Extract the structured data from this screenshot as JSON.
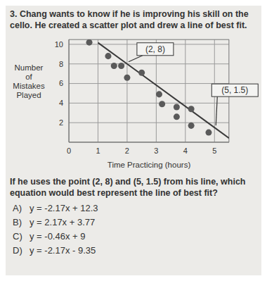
{
  "question": {
    "number": "3.",
    "text": "Chang wants to know if he is improving his skill on the cello.  He created a scatter plot and drew a line of best fit."
  },
  "chart_data": {
    "type": "scatter",
    "y_label": "Number of Mistakes Played",
    "x_label": "Time Practicing (hours)",
    "x": [
      0.7,
      1.35,
      1.55,
      1.8,
      2.0,
      2.5,
      3.1,
      3.2,
      3.7,
      3.7,
      4.2,
      4.2,
      4.8
    ],
    "y": [
      10.2,
      8.8,
      7.8,
      7.8,
      6.6,
      7.1,
      4.9,
      3.9,
      3.6,
      2.6,
      3.4,
      1.7,
      1.0
    ],
    "color": "#5a5a5a",
    "best_fit": {
      "x": [
        1,
        2,
        5,
        5.5
      ],
      "y": [
        10.17,
        8,
        1.5,
        0.42
      ],
      "color": "#3a3a3a"
    },
    "annotations": [
      {
        "text": "(2, 8)",
        "x": 2,
        "y": 8
      },
      {
        "text": "(5, 1.5)",
        "x": 5,
        "y": 1.5
      }
    ],
    "xlim": [
      0,
      5.5
    ],
    "ylim": [
      0,
      10.5
    ],
    "xticks": [
      0,
      1,
      2,
      3,
      4,
      5
    ],
    "yticks": [
      2,
      4,
      6,
      8,
      10
    ],
    "grid": true
  },
  "prompt": "If he uses the point (2, 8) and (5, 1.5) from his line, which equation would best represent the line of best fit?",
  "choices": [
    {
      "letter": "A)",
      "text": "y = -2.17x + 12.3"
    },
    {
      "letter": "B)",
      "text": "y = 2.17x + 3.77"
    },
    {
      "letter": "C)",
      "text": "y = -0.46x + 9"
    },
    {
      "letter": "D)",
      "text": "y = -2.17x - 9.35"
    }
  ]
}
